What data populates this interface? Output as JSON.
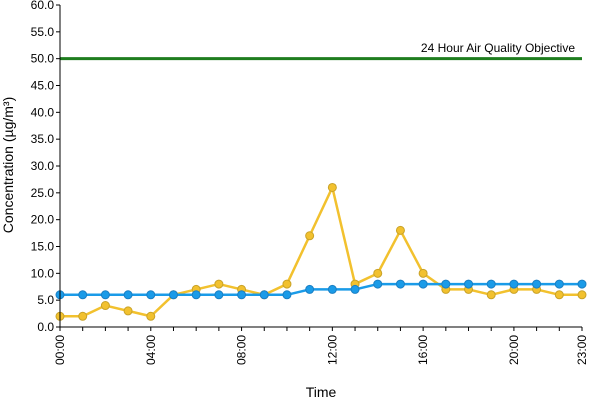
{
  "chart_data": {
    "type": "line",
    "title": "",
    "xlabel": "Time",
    "ylabel": "Concentration (µg/m³)",
    "ylim": [
      0,
      60
    ],
    "yticks": [
      "0.0",
      "5.0",
      "10.0",
      "15.0",
      "20.0",
      "25.0",
      "30.0",
      "35.0",
      "40.0",
      "45.0",
      "50.0",
      "55.0",
      "60.0"
    ],
    "x": [
      "00:00",
      "01:00",
      "02:00",
      "03:00",
      "04:00",
      "05:00",
      "06:00",
      "07:00",
      "08:00",
      "09:00",
      "10:00",
      "11:00",
      "12:00",
      "13:00",
      "14:00",
      "15:00",
      "16:00",
      "17:00",
      "18:00",
      "19:00",
      "20:00",
      "21:00",
      "22:00",
      "23:00"
    ],
    "xtick_labels": [
      "00:00",
      "04:00",
      "08:00",
      "12:00",
      "16:00",
      "20:00",
      "23:00"
    ],
    "grid": false,
    "legend": "none",
    "series": [
      {
        "color": "#f2c12e",
        "marker_edge": "#c9a227",
        "values": [
          2,
          2,
          4,
          3,
          2,
          6,
          7,
          8,
          7,
          6,
          8,
          17,
          26,
          8,
          10,
          18,
          10,
          7,
          7,
          6,
          7,
          7,
          6,
          6
        ]
      },
      {
        "color": "#1a9be8",
        "marker_edge": "#1a7fc4",
        "values": [
          6,
          6,
          6,
          6,
          6,
          6,
          6,
          6,
          6,
          6,
          6,
          7,
          7,
          7,
          8,
          8,
          8,
          8,
          8,
          8,
          8,
          8,
          8,
          8
        ]
      }
    ],
    "reference_line": {
      "value": 50,
      "label": "24 Hour Air Quality Objective",
      "color": "#1e7d1e"
    }
  }
}
